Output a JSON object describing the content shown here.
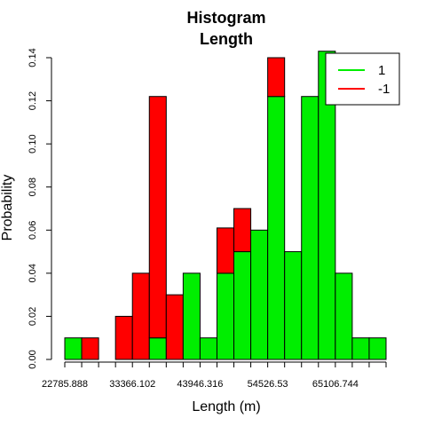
{
  "chart_data": {
    "type": "bar",
    "stacked": true,
    "title_lines": [
      "Histogram",
      "Length"
    ],
    "xlabel": "Length (m)",
    "ylabel": "Probability",
    "ylim": [
      0,
      0.14
    ],
    "y_ticks": [
      0.0,
      0.02,
      0.04,
      0.06,
      0.08,
      0.1,
      0.12,
      0.14
    ],
    "y_tick_labels": [
      "0.00",
      "0.02",
      "0.04",
      "0.06",
      "0.08",
      "0.10",
      "0.12",
      "0.14"
    ],
    "x_tick_labels": [
      "22785.888",
      "33366.102",
      "43946.316",
      "54526.53",
      "65106.744"
    ],
    "bin_count": 19,
    "series": [
      {
        "name": "1",
        "color": "#00ee00",
        "values": [
          0.01,
          0,
          0,
          0,
          0,
          0.01,
          0,
          0.04,
          0.01,
          0.04,
          0.05,
          0.06,
          0.122,
          0.05,
          0.122,
          0.143,
          0.04,
          0.01,
          0.01
        ]
      },
      {
        "name": "-1",
        "color": "#ff0000",
        "values": [
          0,
          0.01,
          0,
          0.02,
          0.04,
          0.112,
          0.03,
          0,
          0,
          0.021,
          0.02,
          0,
          0.02,
          0,
          0,
          0,
          0,
          0,
          0
        ]
      }
    ],
    "legend_position": "top-right",
    "grid": false
  }
}
